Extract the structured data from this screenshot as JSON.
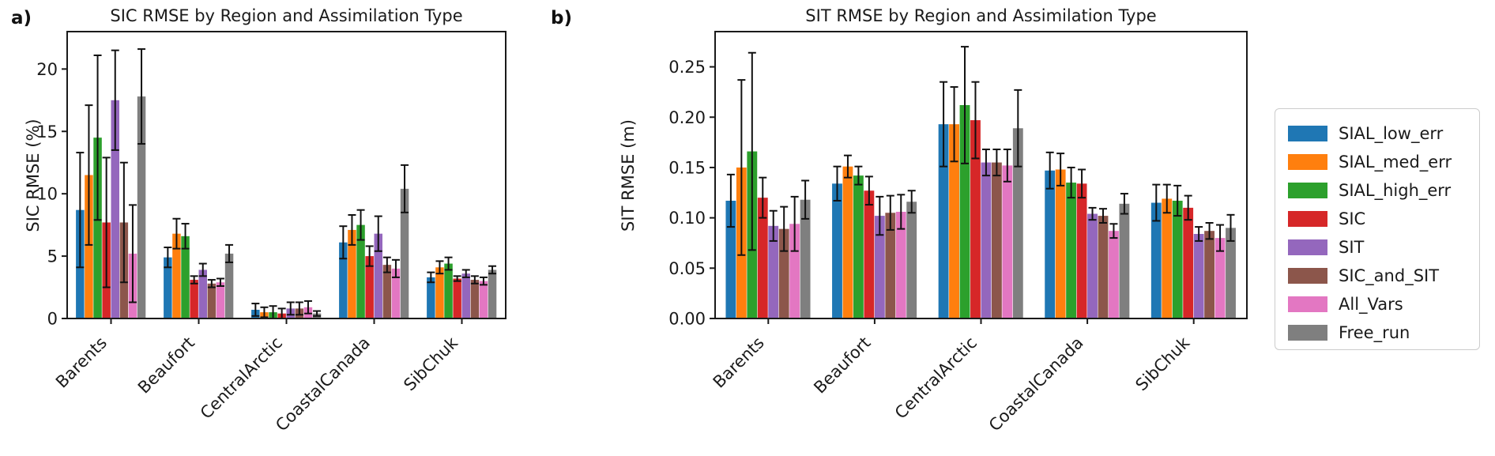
{
  "figure": {
    "background": "#ffffff",
    "axis_color": "#1a1a1a"
  },
  "panels": [
    {
      "label": "a)"
    },
    {
      "label": "b)"
    }
  ],
  "legend": {
    "items": [
      {
        "label": "SIAL_low_err",
        "color": "#1f77b4"
      },
      {
        "label": "SIAL_med_err",
        "color": "#ff7f0e"
      },
      {
        "label": "SIAL_high_err",
        "color": "#2ca02c"
      },
      {
        "label": "SIC",
        "color": "#d62728"
      },
      {
        "label": "SIT",
        "color": "#9467bd"
      },
      {
        "label": "SIC_and_SIT",
        "color": "#8c564b"
      },
      {
        "label": "All_Vars",
        "color": "#e377c2"
      },
      {
        "label": "Free_run",
        "color": "#7f7f7f"
      }
    ]
  },
  "chart_data": [
    {
      "type": "bar",
      "title": "SIC RMSE by Region and Assimilation Type",
      "ylabel": "SIC RMSE (%)",
      "xlabel": "",
      "ylim": [
        0,
        23
      ],
      "yticks": [
        0,
        5,
        10,
        15,
        20
      ],
      "ytick_labels": [
        "0",
        "5",
        "10",
        "15",
        "20"
      ],
      "categories": [
        "Barents",
        "Beaufort",
        "CentralArctic",
        "CoastalCanada",
        "SibChuk"
      ],
      "grid": false,
      "legend_position": "outside-right",
      "error_bars": true,
      "series": [
        {
          "name": "SIAL_low_err",
          "color": "#1f77b4",
          "values": [
            8.7,
            4.9,
            0.7,
            6.1,
            3.3
          ],
          "errors": [
            4.6,
            0.8,
            0.5,
            1.3,
            0.4
          ]
        },
        {
          "name": "SIAL_med_err",
          "color": "#ff7f0e",
          "values": [
            11.5,
            6.8,
            0.5,
            7.1,
            4.1
          ],
          "errors": [
            5.6,
            1.2,
            0.4,
            1.2,
            0.5
          ]
        },
        {
          "name": "SIAL_high_err",
          "color": "#2ca02c",
          "values": [
            14.5,
            6.6,
            0.5,
            7.5,
            4.4
          ],
          "errors": [
            6.6,
            1.0,
            0.5,
            1.2,
            0.5
          ]
        },
        {
          "name": "SIC",
          "color": "#d62728",
          "values": [
            7.7,
            3.1,
            0.4,
            5.0,
            3.2
          ],
          "errors": [
            5.2,
            0.3,
            0.4,
            0.8,
            0.2
          ]
        },
        {
          "name": "SIT",
          "color": "#9467bd",
          "values": [
            17.5,
            3.9,
            0.8,
            6.8,
            3.6
          ],
          "errors": [
            4.0,
            0.5,
            0.5,
            1.4,
            0.3
          ]
        },
        {
          "name": "SIC_and_SIT",
          "color": "#8c564b",
          "values": [
            7.7,
            2.8,
            0.8,
            4.3,
            3.1
          ],
          "errors": [
            4.8,
            0.3,
            0.5,
            0.6,
            0.3
          ]
        },
        {
          "name": "All_Vars",
          "color": "#e377c2",
          "values": [
            5.2,
            2.9,
            0.9,
            4.0,
            3.0
          ],
          "errors": [
            3.9,
            0.3,
            0.5,
            0.7,
            0.3
          ]
        },
        {
          "name": "Free_run",
          "color": "#7f7f7f",
          "values": [
            17.8,
            5.2,
            0.4,
            10.4,
            3.9
          ],
          "errors": [
            3.8,
            0.7,
            0.2,
            1.9,
            0.3
          ]
        }
      ]
    },
    {
      "type": "bar",
      "title": "SIT RMSE by Region and Assimilation Type",
      "ylabel": "SIT RMSE (m)",
      "xlabel": "",
      "ylim": [
        0,
        0.285
      ],
      "yticks": [
        0,
        0.05,
        0.1,
        0.15,
        0.2,
        0.25
      ],
      "ytick_labels": [
        "0.00",
        "0.05",
        "0.10",
        "0.15",
        "0.20",
        "0.25"
      ],
      "categories": [
        "Barents",
        "Beaufort",
        "CentralArctic",
        "CoastalCanada",
        "SibChuk"
      ],
      "grid": false,
      "legend_position": "outside-right",
      "error_bars": true,
      "series": [
        {
          "name": "SIAL_low_err",
          "color": "#1f77b4",
          "values": [
            0.117,
            0.134,
            0.193,
            0.147,
            0.115
          ],
          "errors": [
            0.026,
            0.017,
            0.042,
            0.018,
            0.018
          ]
        },
        {
          "name": "SIAL_med_err",
          "color": "#ff7f0e",
          "values": [
            0.15,
            0.151,
            0.193,
            0.148,
            0.119
          ],
          "errors": [
            0.087,
            0.011,
            0.037,
            0.016,
            0.014
          ]
        },
        {
          "name": "SIAL_high_err",
          "color": "#2ca02c",
          "values": [
            0.166,
            0.142,
            0.212,
            0.135,
            0.117
          ],
          "errors": [
            0.098,
            0.009,
            0.058,
            0.015,
            0.015
          ]
        },
        {
          "name": "SIC",
          "color": "#d62728",
          "values": [
            0.12,
            0.127,
            0.197,
            0.134,
            0.11
          ],
          "errors": [
            0.02,
            0.014,
            0.038,
            0.014,
            0.012
          ]
        },
        {
          "name": "SIT",
          "color": "#9467bd",
          "values": [
            0.092,
            0.102,
            0.155,
            0.104,
            0.084
          ],
          "errors": [
            0.015,
            0.019,
            0.013,
            0.006,
            0.007
          ]
        },
        {
          "name": "SIC_and_SIT",
          "color": "#8c564b",
          "values": [
            0.089,
            0.105,
            0.155,
            0.102,
            0.087
          ],
          "errors": [
            0.022,
            0.017,
            0.013,
            0.007,
            0.008
          ]
        },
        {
          "name": "All_Vars",
          "color": "#e377c2",
          "values": [
            0.094,
            0.106,
            0.152,
            0.087,
            0.08
          ],
          "errors": [
            0.027,
            0.017,
            0.016,
            0.007,
            0.013
          ]
        },
        {
          "name": "Free_run",
          "color": "#7f7f7f",
          "values": [
            0.118,
            0.116,
            0.189,
            0.114,
            0.09
          ],
          "errors": [
            0.019,
            0.011,
            0.038,
            0.01,
            0.013
          ]
        }
      ]
    }
  ]
}
